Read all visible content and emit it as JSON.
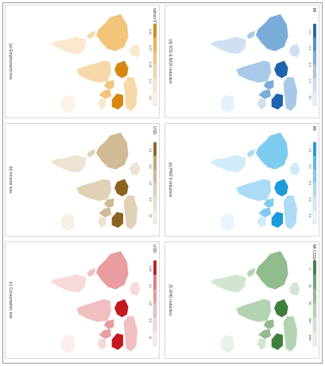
{
  "panels": [
    {
      "id": "a",
      "panel_label": "(a) Employment loss",
      "legend_unit": "million FTE",
      "legend_ticks": [
        "0.01",
        "0.07",
        "0.25",
        "1.0",
        "4.6"
      ],
      "colors": [
        "#f0b04a",
        "#f3c57b",
        "#f7d9a9",
        "#fbe9cf",
        "#fdf3e4"
      ],
      "accent": "#d68712"
    },
    {
      "id": "b",
      "panel_label": "(d) SO2 & NOX reduction",
      "legend_unit": "Mt",
      "legend_ticks": [
        "0.0",
        "0.1",
        "0.3",
        "1.0",
        "3.0"
      ],
      "colors": [
        "#4b8fce",
        "#79acd9",
        "#a8c9e7",
        "#cfe1f1",
        "#e6f0f9"
      ],
      "accent": "#1e63ad"
    },
    {
      "id": "c",
      "panel_label": "(b) Income loss",
      "legend_unit": "USD",
      "legend_ticks": [
        "0.1",
        "0.5",
        "1.5",
        "5.0",
        "15"
      ],
      "colors": [
        "#c0a475",
        "#d1bb95",
        "#e0d2b6",
        "#ece3d2",
        "#f5efe5"
      ],
      "accent": "#8a6420"
    },
    {
      "id": "d",
      "panel_label": "(e) PM2.5 reduction",
      "legend_unit": "Mt",
      "legend_ticks": [
        "0.0",
        "0.1",
        "0.3",
        "1.0",
        "3.0"
      ],
      "colors": [
        "#52b8ea",
        "#7fcbf0",
        "#acdcf5",
        "#d2ebf9",
        "#e8f5fc"
      ],
      "accent": "#1c9ad9"
    },
    {
      "id": "e",
      "panel_label": "(c) Consumption loss",
      "legend_unit": "USD",
      "legend_ticks": [
        "0.05",
        "0.2",
        "0.8",
        "3.0",
        "12"
      ],
      "colors": [
        "#e07a80",
        "#e99da1",
        "#f1bfc1",
        "#f7d9da",
        "#fbeced"
      ],
      "accent": "#c41820"
    },
    {
      "id": "f",
      "panel_label": "(f) GHG reduction",
      "legend_unit": "Mt CO2e",
      "legend_ticks": [
        "0",
        "20",
        "80",
        "300",
        "1000"
      ],
      "colors": [
        "#6ea66c",
        "#90bc8e",
        "#b3d2b1",
        "#d2e5d1",
        "#e8f2e7"
      ],
      "accent": "#3f7f3d"
    }
  ]
}
